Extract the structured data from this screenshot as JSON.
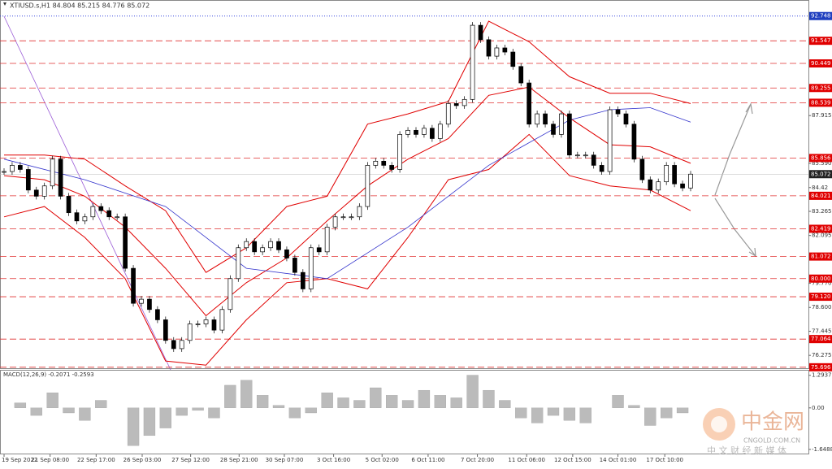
{
  "chart_data": {
    "type": "candlestick",
    "title": "XTIUSD.s,H1  84.804 85.215 84.776 85.072",
    "closes": [
      85.2,
      85.5,
      85.3,
      84.3,
      84.0,
      84.5,
      85.8,
      84.0,
      83.2,
      82.8,
      83.0,
      83.5,
      83.3,
      83.0,
      83.0,
      80.5,
      78.8,
      79.0,
      78.5,
      78.0,
      77.0,
      76.6,
      77.0,
      77.8,
      77.8,
      78.0,
      77.5,
      78.5,
      80.0,
      81.5,
      81.8,
      81.3,
      81.5,
      81.8,
      81.4,
      81.0,
      80.3,
      79.5,
      81.5,
      81.3,
      82.5,
      83.0,
      83.0,
      83.0,
      83.5,
      85.5,
      85.7,
      85.5,
      85.3,
      87.0,
      87.2,
      87.0,
      87.3,
      86.8,
      87.5,
      88.5,
      88.4,
      88.7,
      92.3,
      91.6,
      90.8,
      91.2,
      91.0,
      90.3,
      89.5,
      87.5,
      88.0,
      87.5,
      87.0,
      88.0,
      86.0,
      86.0,
      86.0,
      85.5,
      85.2,
      88.2,
      88.0,
      87.5,
      85.8,
      84.8,
      84.3,
      84.7,
      85.5,
      84.6,
      84.4,
      85.072
    ],
    "bands": {
      "x": [
        0,
        5,
        10,
        15,
        20,
        25,
        30,
        35,
        40,
        45,
        50,
        55,
        60,
        65,
        70,
        75,
        80,
        85
      ],
      "upper": [
        86.0,
        86.0,
        85.8,
        84.5,
        83.3,
        80.3,
        81.5,
        83.5,
        84.0,
        87.5,
        88.0,
        88.6,
        92.5,
        91.5,
        89.8,
        89.0,
        89.0,
        88.5
      ],
      "middle": [
        85.0,
        84.8,
        84.0,
        82.5,
        80.5,
        78.2,
        79.8,
        81.0,
        82.8,
        84.5,
        85.8,
        86.8,
        88.9,
        89.3,
        87.8,
        86.5,
        86.4,
        85.6
      ],
      "lower": [
        83.0,
        83.5,
        82.0,
        80.0,
        76.0,
        75.8,
        78.0,
        79.8,
        80.0,
        79.5,
        82.0,
        84.8,
        85.3,
        87.0,
        85.0,
        84.5,
        84.3,
        83.3
      ],
      "color": "#e00000"
    },
    "ma": {
      "x": [
        0,
        10,
        20,
        30,
        40,
        50,
        60,
        70,
        75,
        80,
        85
      ],
      "values": [
        85.8,
        84.8,
        83.5,
        80.5,
        80.0,
        82.5,
        85.5,
        87.7,
        88.2,
        88.3,
        87.6
      ],
      "color": "#3333cc"
    },
    "ylim": [
      75.65,
      93.33
    ],
    "yticks": [
      87.915,
      {
        "value": 85.59,
        "label": "85.590"
      },
      84.42,
      83.265,
      82.095,
      {
        "value": 79.77,
        "label": "79.770"
      },
      {
        "value": 78.6,
        "label": "78.600"
      },
      77.445,
      76.275
    ],
    "levels": [
      91.547,
      90.449,
      89.255,
      88.539,
      85.856,
      84.021,
      82.419,
      81.072,
      {
        "value": 80,
        "label": "80.000"
      },
      {
        "value": 79.12,
        "label": "79.120"
      },
      77.064,
      75.696
    ],
    "high_line": 92.748,
    "current_price": 85.072,
    "time_labels": [
      "19 Sep 2022",
      "21 Sep 08:00",
      "22 Sep 17:00",
      "26 Sep 03:00",
      "27 Sep 12:00",
      "28 Sep 21:00",
      "30 Sep 07:00",
      "3 Oct 16:00",
      "5 Oct 02:00",
      "6 Oct 11:00",
      "7 Oct 20:00",
      "11 Oct 06:00",
      "12 Oct 15:00",
      "14 Oct 01:00",
      "17 Oct 10:00"
    ],
    "time_label_at": [
      0,
      5.7,
      11.4,
      17.1,
      23.1,
      29.1,
      34.7,
      40.8,
      46.8,
      52.5,
      58.6,
      64.7,
      70.4,
      76,
      81.8
    ],
    "macd": {
      "title": "MACD(12,26,9) -0.2071 -0.2593",
      "x": [
        0,
        2,
        4,
        6,
        8,
        10,
        12,
        14,
        16,
        18,
        20,
        22,
        24,
        26,
        28,
        30,
        32,
        34,
        36,
        38,
        40,
        42,
        44,
        46,
        48,
        50,
        52,
        54,
        56,
        58,
        60,
        62,
        64,
        66,
        68,
        70,
        72,
        74,
        76,
        78,
        80,
        82,
        84
      ],
      "values": [
        0.0,
        0.2,
        -0.3,
        0.6,
        -0.2,
        -0.5,
        0.3,
        0.0,
        -1.5,
        -1.1,
        -0.8,
        -0.3,
        -0.1,
        -0.4,
        0.9,
        1.1,
        0.5,
        0.1,
        -0.4,
        -0.2,
        0.6,
        0.4,
        0.3,
        0.8,
        0.5,
        0.3,
        0.7,
        0.5,
        0.4,
        1.3,
        0.7,
        0.3,
        -0.4,
        -0.6,
        -0.3,
        -0.5,
        -0.6,
        0.0,
        0.5,
        0.1,
        -0.7,
        -0.4,
        -0.2
      ],
      "ylim": [
        -1.75,
        1.35
      ],
      "yticks": [
        1.2937,
        {
          "value": 0,
          "label": "0.00"
        },
        -1.6488
      ]
    }
  },
  "watermark": {
    "logo": "中金网",
    "site": "CNGOLD.COM.CN",
    "tagline": "中 文 财 经 新 媒 体"
  }
}
